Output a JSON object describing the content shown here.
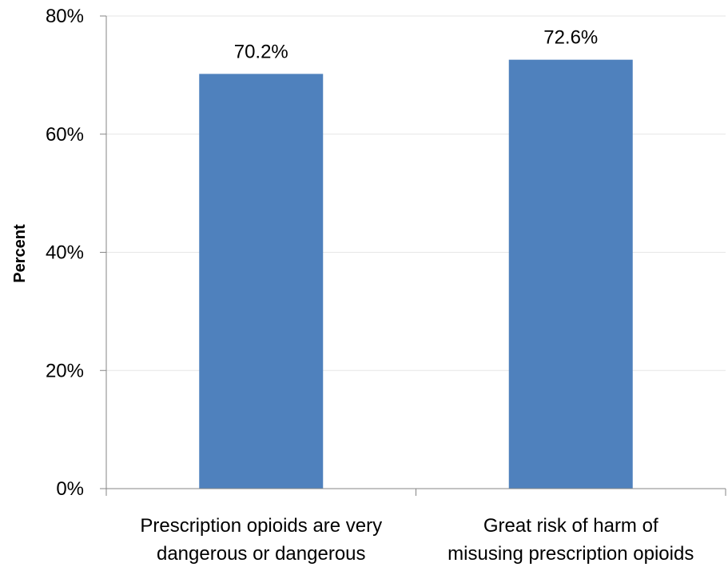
{
  "chart_data": {
    "type": "bar",
    "title": "",
    "xlabel": "",
    "ylabel": "Percent",
    "ylim": [
      0,
      80
    ],
    "y_ticks": [
      0,
      20,
      40,
      60,
      80
    ],
    "y_tick_labels": [
      "0%",
      "20%",
      "40%",
      "60%",
      "80%"
    ],
    "categories": [
      [
        "Prescription opioids are very",
        "dangerous or dangerous"
      ],
      [
        "Great risk of harm of",
        "misusing prescription opioids"
      ]
    ],
    "values": [
      70.2,
      72.6
    ],
    "data_labels": [
      "70.2%",
      "72.6%"
    ],
    "bar_color": "#4f81bd",
    "grid": true,
    "legend": "none"
  }
}
